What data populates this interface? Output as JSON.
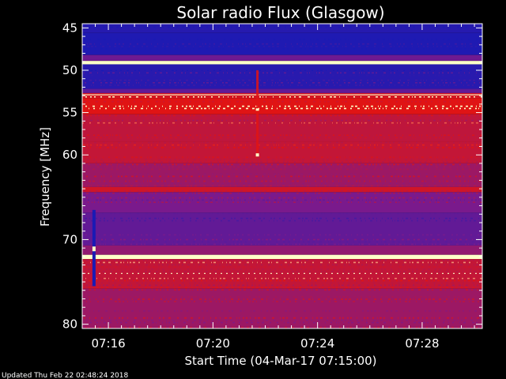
{
  "chart_data": {
    "type": "heatmap",
    "title": "Solar radio Flux (Glasgow)",
    "xlabel": "Start Time (04-Mar-17 07:15:00)",
    "ylabel": "Frequency [MHz]",
    "x_tick_labels": [
      "07:16",
      "07:20",
      "07:24",
      "07:28"
    ],
    "x_tick_minutes": [
      1,
      5,
      9,
      13
    ],
    "xlim_minutes": [
      0,
      15.3
    ],
    "y_ticks": [
      45,
      50,
      55,
      60,
      70,
      80
    ],
    "ylim_mhz": [
      44.5,
      80.5
    ],
    "colors": {
      "background": "#000000",
      "low": "#1a1ab4",
      "mid": "#7a1a8c",
      "high": "#e01414",
      "peak": "#ffffc8"
    },
    "bands": [
      {
        "f0": 44.5,
        "f1": 45.6,
        "level": 0.05
      },
      {
        "f0": 45.6,
        "f1": 48.2,
        "level": 0.02
      },
      {
        "f0": 48.2,
        "f1": 48.9,
        "level": 0.35
      },
      {
        "f0": 48.9,
        "f1": 49.3,
        "level": 1.0
      },
      {
        "f0": 49.3,
        "f1": 52.2,
        "level": 0.06
      },
      {
        "f0": 52.2,
        "f1": 52.7,
        "level": 0.3
      },
      {
        "f0": 52.7,
        "f1": 53.3,
        "level": 0.8
      },
      {
        "f0": 53.3,
        "f1": 55.2,
        "level": 0.85
      },
      {
        "f0": 55.2,
        "f1": 58.4,
        "level": 0.7
      },
      {
        "f0": 58.4,
        "f1": 61.0,
        "level": 0.72
      },
      {
        "f0": 61.0,
        "f1": 63.8,
        "level": 0.55
      },
      {
        "f0": 63.8,
        "f1": 64.4,
        "level": 0.78
      },
      {
        "f0": 64.4,
        "f1": 66.8,
        "level": 0.4
      },
      {
        "f0": 66.8,
        "f1": 70.7,
        "level": 0.3
      },
      {
        "f0": 70.7,
        "f1": 71.8,
        "level": 0.5
      },
      {
        "f0": 71.8,
        "f1": 72.3,
        "level": 1.0
      },
      {
        "f0": 72.3,
        "f1": 75.8,
        "level": 0.72
      },
      {
        "f0": 75.8,
        "f1": 80.5,
        "level": 0.55
      }
    ],
    "peak_lines_mhz": [
      49.1,
      52.9,
      72.1,
      74.0
    ],
    "features": [
      {
        "label": "narrow burst",
        "minute": 6.7,
        "f0": 50.0,
        "f1": 60.0
      },
      {
        "label": "impulsive column",
        "minute": 0.45,
        "f0": 66.5,
        "f1": 75.5
      }
    ]
  },
  "footer": {
    "updated": "Updated Thu Feb 22 02:48:24 2018"
  }
}
